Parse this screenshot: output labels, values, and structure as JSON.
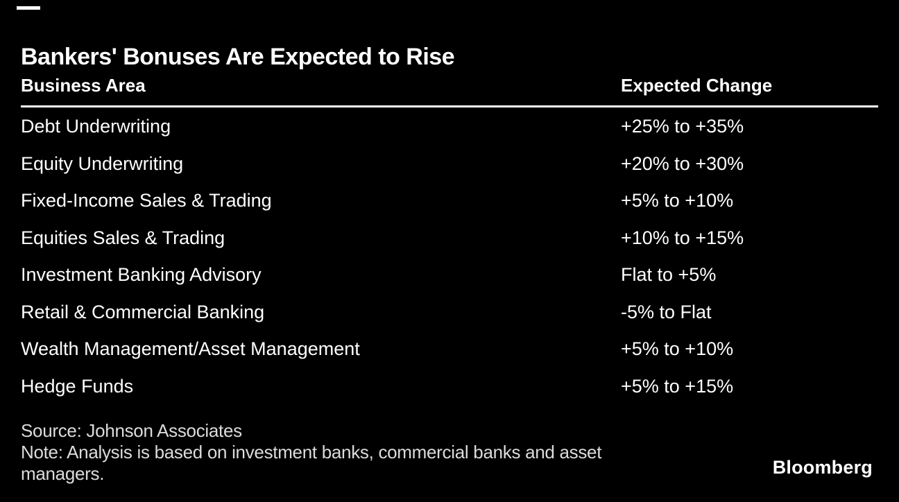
{
  "page": {
    "background_color": "#000000",
    "text_color": "#ffffff",
    "footer_text_color": "#dcdcdc"
  },
  "chart_data": {
    "type": "table",
    "title": "Bankers' Bonuses Are Expected to Rise",
    "columns": [
      "Business Area",
      "Expected Change"
    ],
    "rows": [
      [
        "Debt Underwriting",
        "+25% to +35%"
      ],
      [
        "Equity Underwriting",
        "+20% to +30%"
      ],
      [
        "Fixed-Income Sales & Trading",
        "+5% to +10%"
      ],
      [
        "Equities Sales & Trading",
        "+10% to +15%"
      ],
      [
        "Investment Banking Advisory",
        "Flat to +5%"
      ],
      [
        "Retail & Commercial Banking",
        "-5% to Flat"
      ],
      [
        "Wealth Management/Asset Management",
        "+5% to +10%"
      ],
      [
        "Hedge Funds",
        "+5% to +15%"
      ]
    ],
    "source": "Source: Johnson Associates",
    "note": "Note: Analysis is based on investment banks, commercial banks and asset managers.",
    "layout_hints": {
      "grid": "off",
      "header_rule": "on",
      "value_column_x": 895
    }
  },
  "footer": {
    "source": "Source: Johnson Associates",
    "note_line1": "Note: Analysis is based on investment banks, commercial banks and asset",
    "note_line2": "managers."
  },
  "branding": {
    "logo_text": "Bloomberg"
  }
}
